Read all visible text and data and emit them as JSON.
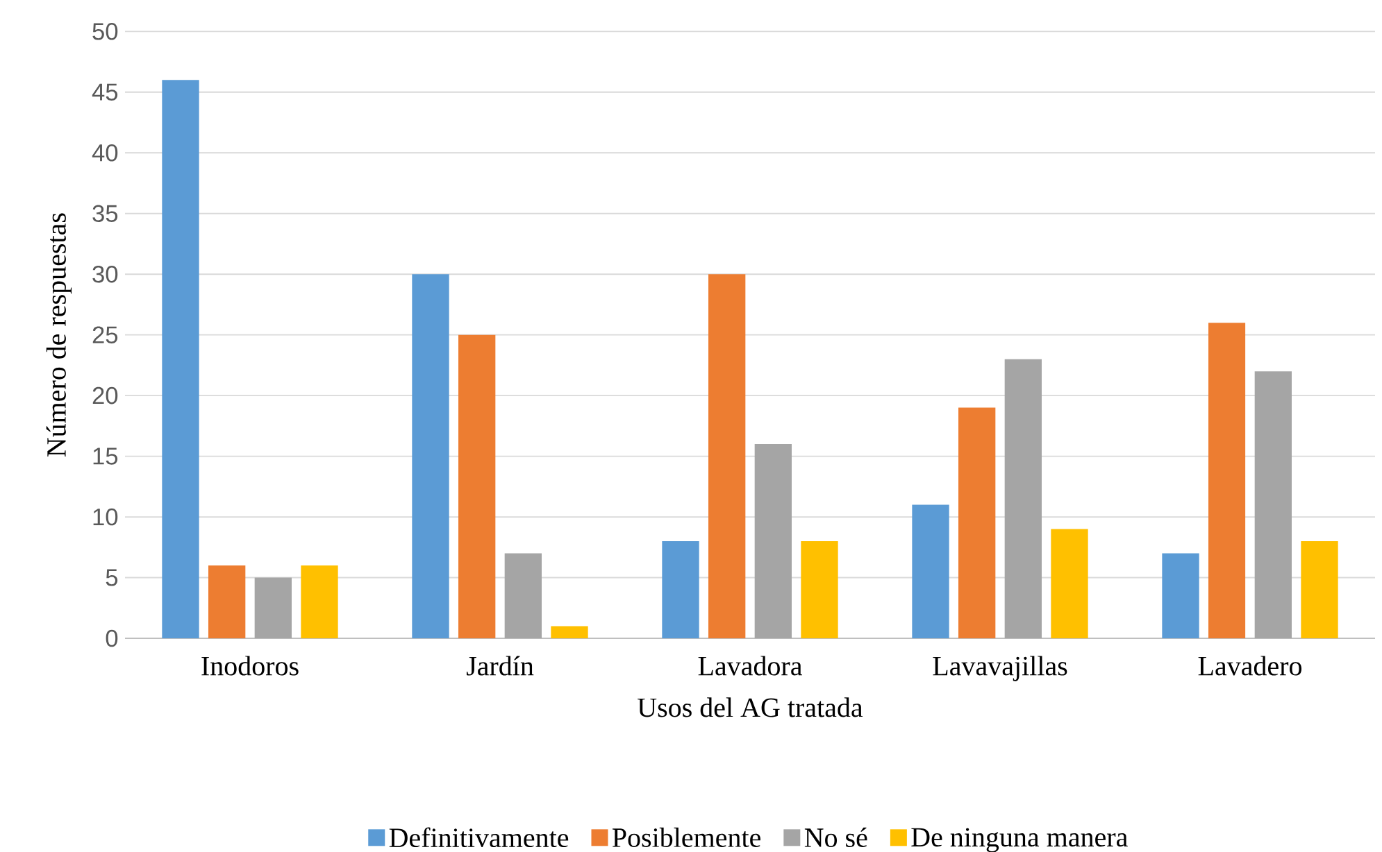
{
  "chart_data": {
    "type": "bar",
    "xlabel": "Usos del AG tratada",
    "ylabel": "Número de respuestas",
    "categories": [
      "Inodoros",
      "Jardín",
      "Lavadora",
      "Lavavajillas",
      "Lavadero"
    ],
    "series": [
      {
        "name": "Definitivamente",
        "color": "#5b9bd5",
        "values": [
          46,
          30,
          8,
          11,
          7
        ]
      },
      {
        "name": "Posiblemente",
        "color": "#ed7d31",
        "values": [
          6,
          25,
          30,
          19,
          26
        ]
      },
      {
        "name": "No sé",
        "color": "#a5a5a5",
        "values": [
          5,
          7,
          16,
          23,
          22
        ]
      },
      {
        "name": "De ninguna manera",
        "color": "#ffc000",
        "values": [
          6,
          1,
          8,
          9,
          8
        ]
      }
    ],
    "ylim": [
      0,
      50
    ],
    "yticks": [
      0,
      5,
      10,
      15,
      20,
      25,
      30,
      35,
      40,
      45,
      50
    ],
    "grid": "y",
    "legend": "bottom"
  }
}
